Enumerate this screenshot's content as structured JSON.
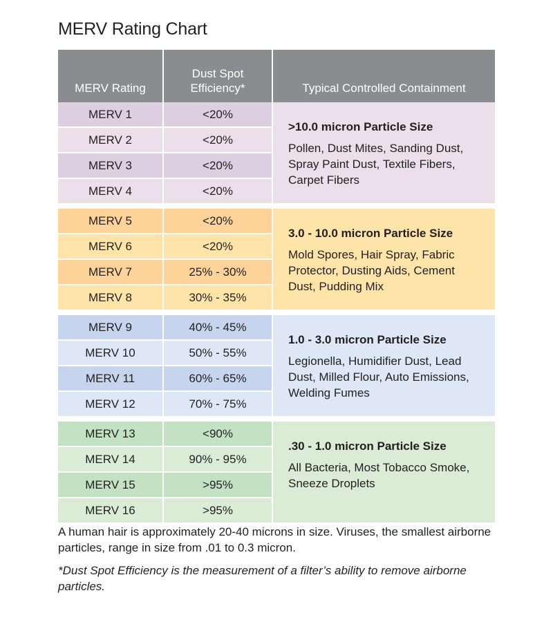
{
  "title": "MERV Rating Chart",
  "headers": {
    "rating": "MERV Rating",
    "efficiency_line1": "Dust Spot",
    "efficiency_line2": "Efficiency*",
    "containment": "Typical Controlled Containment"
  },
  "groups": [
    {
      "colors": {
        "dark": "#dccfe1",
        "light": "#ebdfe9",
        "desc": "#ebdfe9"
      },
      "particle_size": ">10.0 micron Particle Size",
      "description": "Pollen, Dust Mites, Sanding Dust, Spray Paint Dust, Textile Fibers, Carpet Fibers",
      "rows": [
        {
          "rating": "MERV 1",
          "efficiency": "<20%"
        },
        {
          "rating": "MERV 2",
          "efficiency": "<20%"
        },
        {
          "rating": "MERV 3",
          "efficiency": "<20%"
        },
        {
          "rating": "MERV 4",
          "efficiency": "<20%"
        }
      ]
    },
    {
      "colors": {
        "dark": "#fdd399",
        "light": "#fee4a9",
        "desc": "#fee4a9"
      },
      "particle_size": "3.0 - 10.0 micron Particle Size",
      "description": "Mold Spores, Hair Spray, Fabric Protector, Dusting Aids, Cement Dust, Pudding Mix",
      "rows": [
        {
          "rating": "MERV 5",
          "efficiency": "<20%"
        },
        {
          "rating": "MERV 6",
          "efficiency": "<20%"
        },
        {
          "rating": "MERV 7",
          "efficiency": "25% - 30%"
        },
        {
          "rating": "MERV 8",
          "efficiency": "30% - 35%"
        }
      ]
    },
    {
      "colors": {
        "dark": "#c6d5ed",
        "light": "#dde7f5",
        "desc": "#dde7f5"
      },
      "particle_size": "1.0 - 3.0 micron Particle Size",
      "description": "Legionella, Humidifier Dust, Lead Dust, Milled Flour, Auto Emissions, Welding Fumes",
      "rows": [
        {
          "rating": "MERV 9",
          "efficiency": "40% - 45%"
        },
        {
          "rating": "MERV 10",
          "efficiency": "50% - 55%"
        },
        {
          "rating": "MERV 11",
          "efficiency": "60% - 65%"
        },
        {
          "rating": "MERV 12",
          "efficiency": "70% - 75%"
        }
      ]
    },
    {
      "colors": {
        "dark": "#c2e2c3",
        "light": "#daecd6",
        "desc": "#daecd6"
      },
      "particle_size": ".30 - 1.0 micron Particle Size",
      "description": "All Bacteria, Most Tobacco Smoke, Sneeze Droplets",
      "rows": [
        {
          "rating": "MERV 13",
          "efficiency": "<90%"
        },
        {
          "rating": "MERV 14",
          "efficiency": "90% - 95%"
        },
        {
          "rating": "MERV 15",
          "efficiency": ">95%"
        },
        {
          "rating": "MERV 16",
          "efficiency": ">95%"
        }
      ]
    }
  ],
  "footnote": "A human hair is approximately 20-40 microns in size. Viruses, the smallest airborne particles, range in size from .01 to 0.3 micron.",
  "asterisk_note": "*Dust Spot Efficiency is the measurement of a filter’s ability to remove airborne particles.",
  "header_color": "#8a8c8f"
}
